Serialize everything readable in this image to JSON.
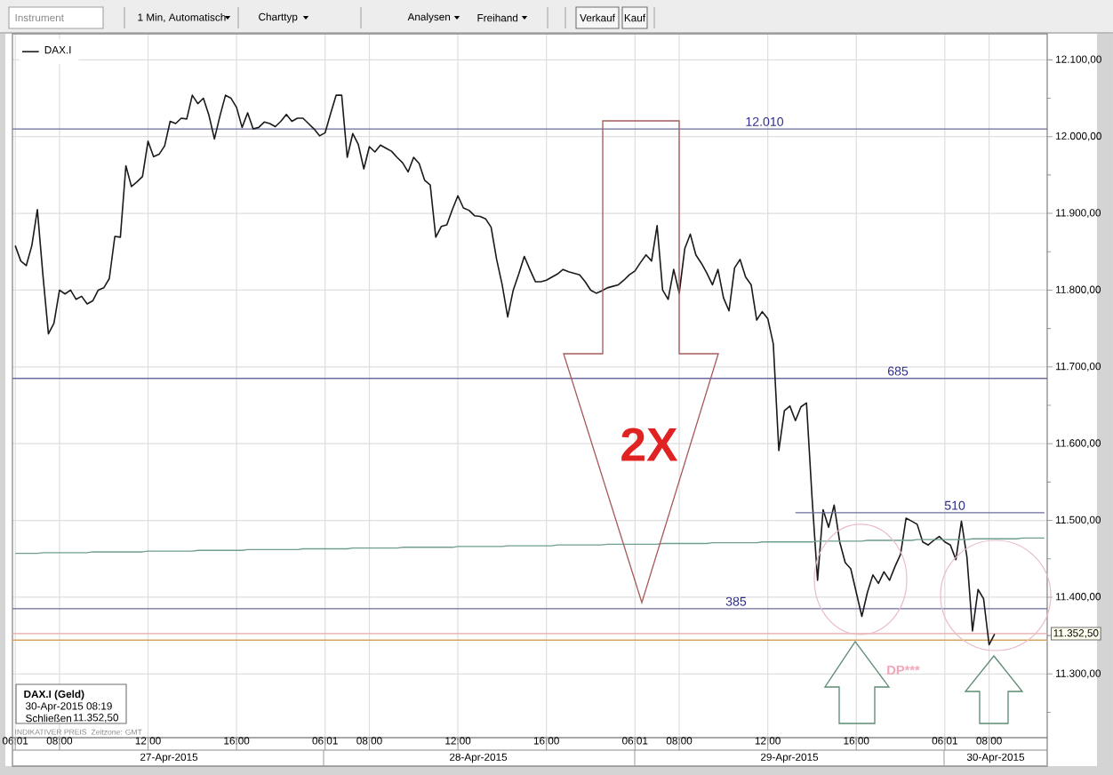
{
  "chart_data": {
    "type": "line",
    "categories": [
      "06:01",
      null,
      null,
      null,
      null,
      null,
      null,
      null,
      "08:00",
      null,
      null,
      null,
      null,
      null,
      null,
      null,
      null,
      null,
      null,
      null,
      null,
      null,
      null,
      null,
      "12:00",
      null,
      null,
      null,
      null,
      null,
      null,
      null,
      null,
      null,
      null,
      null,
      null,
      null,
      null,
      null,
      "16:00",
      null,
      null,
      null,
      null,
      null,
      null,
      null,
      null,
      null,
      null,
      null,
      null,
      null,
      null,
      null,
      "06:01",
      null,
      null,
      null,
      null,
      null,
      null,
      null,
      "08:00",
      null,
      null,
      null,
      null,
      null,
      null,
      null,
      null,
      null,
      null,
      null,
      null,
      null,
      null,
      null,
      "12:00",
      null,
      null,
      null,
      null,
      null,
      null,
      null,
      null,
      null,
      null,
      null,
      null,
      null,
      null,
      null,
      "16:00",
      null,
      null,
      null,
      null,
      null,
      null,
      null,
      null,
      null,
      null,
      null,
      null,
      null,
      null,
      null,
      "06:01",
      null,
      null,
      null,
      null,
      null,
      null,
      null,
      "08:00",
      null,
      null,
      null,
      null,
      null,
      null,
      null,
      null,
      null,
      null,
      null,
      null,
      null,
      null,
      null,
      "12:00",
      null,
      null,
      null,
      null,
      null,
      null,
      null,
      null,
      null,
      null,
      null,
      null,
      null,
      null,
      null,
      "16:00",
      null,
      null,
      null,
      null,
      null,
      null,
      null,
      null,
      null,
      null,
      null,
      null,
      null,
      null,
      null,
      "06:01",
      null,
      null,
      null,
      null,
      null,
      null,
      null,
      "08:00",
      null,
      null,
      null,
      null,
      null,
      null,
      null,
      null,
      null,
      null
    ],
    "series": [
      {
        "name": "DAX.I",
        "color": "#1a1a1a",
        "values": [
          11858,
          11838,
          11832,
          11858,
          11905,
          11820,
          11743,
          11757,
          11800,
          11795,
          11800,
          11788,
          11792,
          11782,
          11786,
          11800,
          11803,
          11815,
          11870,
          11869,
          11962,
          11935,
          11941,
          11948,
          11994,
          11974,
          11977,
          11988,
          12020,
          12017,
          12024,
          12023,
          12054,
          12043,
          12050,
          12028,
          11997,
          12027,
          12054,
          12050,
          12038,
          12012,
          12031,
          12010,
          12012,
          12019,
          12017,
          12013,
          12020,
          12029,
          12020,
          12024,
          12024,
          12017,
          12010,
          12001,
          12005,
          12030,
          12054,
          12054,
          11973,
          12004,
          11990,
          11958,
          11987,
          11980,
          11989,
          11985,
          11981,
          11973,
          11966,
          11954,
          11973,
          11965,
          11943,
          11937,
          11869,
          11883,
          11885,
          11905,
          11923,
          11907,
          11904,
          11897,
          11896,
          11893,
          11882,
          11840,
          11807,
          11765,
          11800,
          11821,
          11844,
          11827,
          11811,
          11811,
          11813,
          11817,
          11821,
          11827,
          11824,
          11822,
          11820,
          11811,
          11800,
          11796,
          11799,
          11803,
          11805,
          11807,
          11813,
          11820,
          11825,
          11836,
          11846,
          11838,
          11884,
          11800,
          11788,
          11827,
          11796,
          11854,
          11873,
          11846,
          11835,
          11822,
          11807,
          11827,
          11790,
          11773,
          11829,
          11840,
          11817,
          11807,
          11761,
          11772,
          11763,
          11730,
          11591,
          11643,
          11649,
          11630,
          11648,
          11653,
          11530,
          11422,
          11514,
          11491,
          11520,
          11472,
          11445,
          11437,
          11406,
          11375,
          11406,
          11429,
          11418,
          11433,
          11422,
          11440,
          11456,
          11503,
          11499,
          11495,
          11472,
          11468,
          11474,
          11479,
          11472,
          11468,
          11449,
          11499,
          11452,
          11356,
          11410,
          11398,
          11338,
          11352,
          null,
          null,
          null,
          null,
          null,
          null,
          null,
          null,
          null
        ]
      },
      {
        "color": "#6c6c9c",
        "values": [
          null,
          null,
          null,
          null,
          null,
          null,
          null,
          null,
          null,
          null,
          null,
          null,
          null,
          null,
          null,
          null,
          null,
          null,
          null,
          null,
          null,
          null,
          null,
          null,
          null,
          null,
          null,
          null,
          null,
          null,
          null,
          null,
          null,
          null,
          null,
          null,
          null,
          null,
          null,
          null,
          null,
          null,
          null,
          null,
          null,
          null,
          null,
          null,
          null,
          null,
          null,
          null,
          null,
          null,
          null,
          null,
          null,
          null,
          null,
          null,
          null,
          null,
          null,
          null,
          null,
          null,
          null,
          null,
          null,
          null,
          null,
          null,
          null,
          null,
          null,
          null,
          null,
          null,
          null,
          null,
          null,
          null,
          null,
          null,
          null,
          null,
          null,
          null,
          null,
          null,
          null,
          null,
          null,
          null,
          null,
          null,
          null,
          null,
          null,
          null,
          null,
          null,
          null,
          null,
          null,
          null,
          null,
          null,
          null,
          null,
          null,
          null,
          null,
          null,
          null,
          null,
          null,
          null,
          null,
          null,
          null,
          null,
          null,
          null,
          null,
          null,
          null,
          null,
          null,
          null,
          null,
          null,
          null,
          null,
          null,
          null,
          null,
          null,
          null,
          null,
          null,
          11510,
          11510,
          11510,
          11510,
          11510,
          11510,
          11510,
          11510,
          11510,
          11510,
          11510,
          11510,
          11510,
          11510,
          11510,
          11510,
          11510,
          11510,
          11510,
          11510,
          11510,
          11510,
          11510,
          11510,
          11510,
          11510,
          11510,
          11510,
          11510,
          11510,
          11510,
          11510,
          11510,
          11510,
          11510,
          11510,
          11510,
          11510,
          11510,
          11510,
          11510,
          11510,
          11510,
          11510,
          11510,
          11510
        ]
      },
      {
        "color": "#6f9e8c",
        "values": [
          11457,
          11457,
          11457,
          11457,
          11457,
          11458,
          11458,
          11458,
          11458,
          11458,
          11458,
          11458,
          11458,
          11458,
          11459,
          11459,
          11459,
          11459,
          11459,
          11459,
          11459,
          11459,
          11459,
          11459,
          11460,
          11460,
          11460,
          11460,
          11460,
          11460,
          11460,
          11460,
          11460,
          11461,
          11461,
          11461,
          11461,
          11461,
          11461,
          11461,
          11461,
          11461,
          11462,
          11462,
          11462,
          11462,
          11462,
          11462,
          11462,
          11462,
          11462,
          11462,
          11463,
          11463,
          11463,
          11463,
          11463,
          11463,
          11463,
          11463,
          11463,
          11464,
          11464,
          11464,
          11464,
          11464,
          11464,
          11464,
          11464,
          11464,
          11465,
          11465,
          11465,
          11465,
          11465,
          11465,
          11465,
          11465,
          11465,
          11465,
          11466,
          11466,
          11466,
          11466,
          11466,
          11466,
          11466,
          11466,
          11466,
          11467,
          11467,
          11467,
          11467,
          11467,
          11467,
          11467,
          11467,
          11467,
          11468,
          11468,
          11468,
          11468,
          11468,
          11468,
          11468,
          11468,
          11468,
          11469,
          11469,
          11469,
          11469,
          11469,
          11469,
          11469,
          11469,
          11469,
          11469,
          11470,
          11470,
          11470,
          11470,
          11470,
          11470,
          11470,
          11470,
          11470,
          11471,
          11471,
          11471,
          11471,
          11471,
          11471,
          11471,
          11471,
          11471,
          11472,
          11472,
          11472,
          11472,
          11472,
          11472,
          11472,
          11472,
          11472,
          11472,
          11473,
          11473,
          11473,
          11473,
          11473,
          11473,
          11473,
          11473,
          11473,
          11474,
          11474,
          11474,
          11474,
          11474,
          11474,
          11474,
          11474,
          11474,
          11475,
          11475,
          11475,
          11475,
          11475,
          11475,
          11475,
          11475,
          11475,
          11475,
          11476,
          11476,
          11476,
          11476,
          11476,
          11476,
          11476,
          11476,
          11476,
          11477,
          11477,
          11477,
          11477,
          11477
        ]
      }
    ],
    "ylim": [
      11217,
      12134
    ],
    "yticks": [
      {
        "value": 11250,
        "label": null
      },
      {
        "value": 11300,
        "label": "11.300,00"
      },
      {
        "value": 11350,
        "label": null
      },
      {
        "value": 11400,
        "label": "11.400,00"
      },
      {
        "value": 11450,
        "label": null
      },
      {
        "value": 11500,
        "label": "11.500,00"
      },
      {
        "value": 11550,
        "label": null
      },
      {
        "value": 11600,
        "label": "11.600,00"
      },
      {
        "value": 11650,
        "label": null
      },
      {
        "value": 11700,
        "label": "11.700,00"
      },
      {
        "value": 11750,
        "label": null
      },
      {
        "value": 11800,
        "label": "11.800,00"
      },
      {
        "value": 11850,
        "label": null
      },
      {
        "value": 11900,
        "label": "11.900,00"
      },
      {
        "value": 11950,
        "label": null
      },
      {
        "value": 12000,
        "label": "12.000,00"
      },
      {
        "value": 12050,
        "label": null
      },
      {
        "value": 12100,
        "label": "12.100,00"
      }
    ],
    "grid": true,
    "legend": "top left",
    "ref_lines": [
      {
        "axis": "y",
        "value": 12010,
        "color": "#6c6c9c"
      },
      {
        "axis": "y",
        "value": 11685,
        "color": "#6c6c9c"
      },
      {
        "axis": "y",
        "value": 11385,
        "color": "#6c6c9c"
      },
      {
        "axis": "y",
        "value": 11352.5,
        "label": "11.352,50",
        "color": "#e6a9a9"
      },
      {
        "axis": "y",
        "value": 11344,
        "color": "#d9a45f"
      }
    ],
    "annotations": [
      {
        "text": "12.010",
        "y": 12010
      },
      {
        "text": "685",
        "y": 11685
      },
      {
        "text": "510",
        "y": 11510
      },
      {
        "text": "385",
        "y": 11385
      },
      "2X",
      "DP***",
      "DAX.I (Geld)",
      "30-Apr-2015 08:19",
      "Schließen",
      "11.352,50",
      "INDIKATIVER PREIS",
      "Zeitzone: GMT",
      "Instrument",
      "1 Min, Automatisch",
      "Charttyp",
      "Analysen",
      "Freihand",
      "Verkauf",
      "Kauf",
      "27-Apr-2015",
      "28-Apr-2015",
      "29-Apr-2015",
      "30-Apr-2015"
    ]
  }
}
